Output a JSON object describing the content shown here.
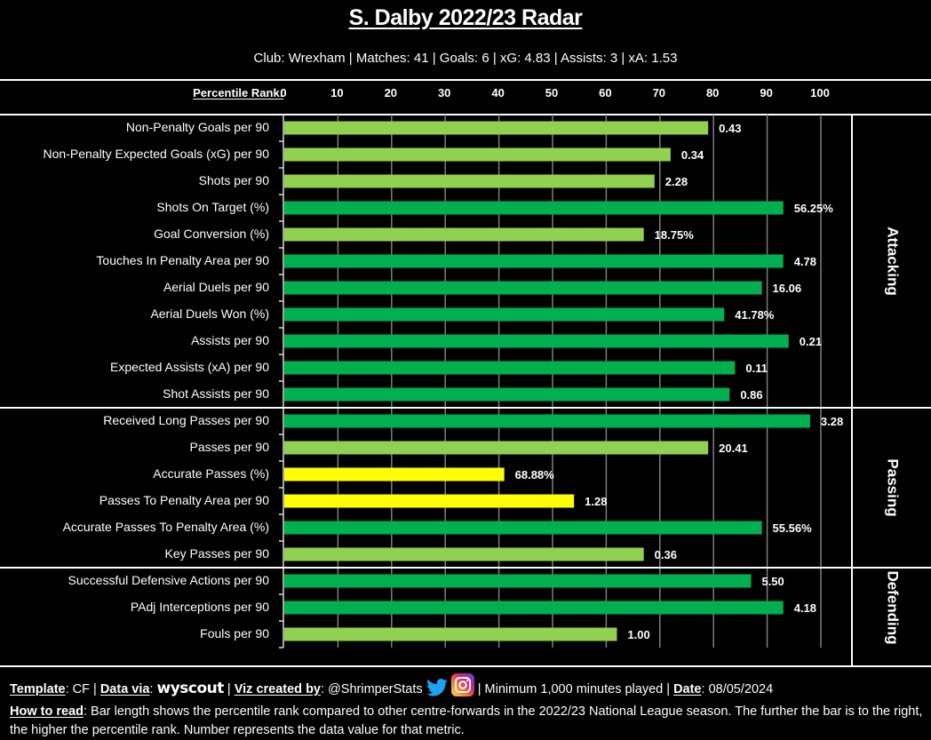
{
  "header": {
    "title": "S. Dalby 2022/23 Radar",
    "subtitle": "Club: Wrexham | Matches: 41 | Goals: 6 | xG: 4.83 | Assists: 3 | xA: 1.53"
  },
  "colors": {
    "high": "#00B050",
    "mid_high": "#92D050",
    "mid": "#FFFF00",
    "gridline": "#7f7f7f"
  },
  "chart_data": {
    "type": "bar",
    "orientation": "horizontal",
    "title": "S. Dalby 2022/23 Radar",
    "xlabel": "Percentile Rank:",
    "xlim": [
      0,
      100
    ],
    "xticks": [
      0,
      10,
      20,
      30,
      40,
      50,
      60,
      70,
      80,
      90,
      100
    ],
    "grid": true,
    "sections": [
      {
        "name": "Attacking",
        "metrics": [
          {
            "label": "Non-Penalty Goals per 90",
            "percentile": 79,
            "value": "0.43",
            "color": "mid_high"
          },
          {
            "label": "Non-Penalty Expected Goals (xG) per 90",
            "percentile": 72,
            "value": "0.34",
            "color": "mid_high"
          },
          {
            "label": "Shots per 90",
            "percentile": 69,
            "value": "2.28",
            "color": "mid_high"
          },
          {
            "label": "Shots On Target (%)",
            "percentile": 93,
            "value": "56.25%",
            "color": "high"
          },
          {
            "label": "Goal Conversion (%)",
            "percentile": 67,
            "value": "18.75%",
            "color": "mid_high"
          },
          {
            "label": "Touches In Penalty Area per 90",
            "percentile": 93,
            "value": "4.78",
            "color": "high"
          },
          {
            "label": "Aerial Duels per 90",
            "percentile": 89,
            "value": "16.06",
            "color": "high"
          },
          {
            "label": "Aerial Duels Won (%)",
            "percentile": 82,
            "value": "41.78%",
            "color": "high"
          },
          {
            "label": "Assists per 90",
            "percentile": 94,
            "value": "0.21",
            "color": "high"
          },
          {
            "label": "Expected Assists (xA) per 90",
            "percentile": 84,
            "value": "0.11",
            "color": "high"
          },
          {
            "label": "Shot Assists per 90",
            "percentile": 83,
            "value": "0.86",
            "color": "high"
          }
        ]
      },
      {
        "name": "Passing",
        "metrics": [
          {
            "label": "Received Long Passes per 90",
            "percentile": 98,
            "value": "3.28",
            "color": "high"
          },
          {
            "label": "Passes per 90",
            "percentile": 79,
            "value": "20.41",
            "color": "mid_high"
          },
          {
            "label": "Accurate Passes (%)",
            "percentile": 41,
            "value": "68.88%",
            "color": "mid"
          },
          {
            "label": "Passes To Penalty Area per 90",
            "percentile": 54,
            "value": "1.28",
            "color": "mid"
          },
          {
            "label": "Accurate Passes To Penalty Area (%)",
            "percentile": 89,
            "value": "55.56%",
            "color": "high"
          },
          {
            "label": "Key Passes per 90",
            "percentile": 67,
            "value": "0.36",
            "color": "mid_high"
          }
        ]
      },
      {
        "name": "Defending",
        "metrics": [
          {
            "label": "Successful Defensive Actions per 90",
            "percentile": 87,
            "value": "5.50",
            "color": "high"
          },
          {
            "label": "PAdj Interceptions per 90",
            "percentile": 93,
            "value": "4.18",
            "color": "high"
          },
          {
            "label": "Fouls per 90",
            "percentile": 62,
            "value": "1.00",
            "color": "mid_high"
          }
        ]
      }
    ]
  },
  "footer": {
    "template_label": "Template",
    "template_value": "CF",
    "data_via_label": "Data via",
    "data_source": "wyscout",
    "viz_label": "Viz created by",
    "viz_value": "@ShrimperStats",
    "twitter_icon": "twitter-bird-icon",
    "instagram_icon": "instagram-icon",
    "minimum": "| Minimum 1,000 minutes played |",
    "date_label": "Date",
    "date_value": "08/05/2024",
    "how_label": "How to read",
    "how_text": "Bar length shows the percentile rank compared to other centre-forwards in the 2022/23 National League season. The further the bar is to the right, the higher the percentile rank. Number represents the data value for that metric."
  }
}
